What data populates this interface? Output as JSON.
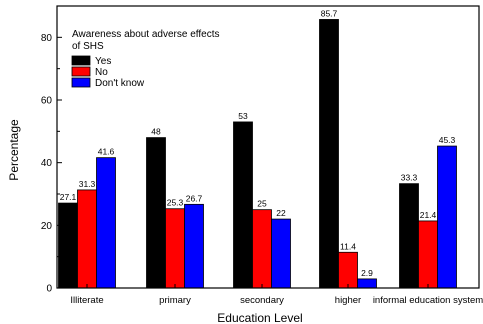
{
  "chart_data": {
    "type": "bar",
    "title": "",
    "xlabel": "Education Level",
    "ylabel": "Percentage",
    "ylim": [
      0,
      90
    ],
    "yticks": [
      0,
      20,
      40,
      60,
      80
    ],
    "categories": [
      "Illiterate",
      "primary",
      "secondary",
      "higher",
      "informal education system"
    ],
    "series": [
      {
        "name": "Yes",
        "color": "#000000",
        "values": [
          27.1,
          48,
          53,
          85.7,
          33.3
        ],
        "labels": [
          "27.1",
          "48",
          "53",
          "85.7",
          "33.3"
        ]
      },
      {
        "name": "No",
        "color": "#ff0000",
        "values": [
          31.3,
          25.3,
          25,
          11.4,
          21.4
        ],
        "labels": [
          "31.3",
          "25.3",
          "25",
          "11.4",
          "21.4"
        ]
      },
      {
        "name": "Don't know",
        "color": "#0000ff",
        "values": [
          41.6,
          26.7,
          22,
          2.9,
          45.3
        ],
        "labels": [
          "41.6",
          "26.7",
          "22",
          "2.9",
          "45.3"
        ]
      }
    ],
    "legend": {
      "title_line1": "Awareness about adverse effects",
      "title_line2": "of SHS",
      "placement": "top-left"
    },
    "grid": false
  }
}
